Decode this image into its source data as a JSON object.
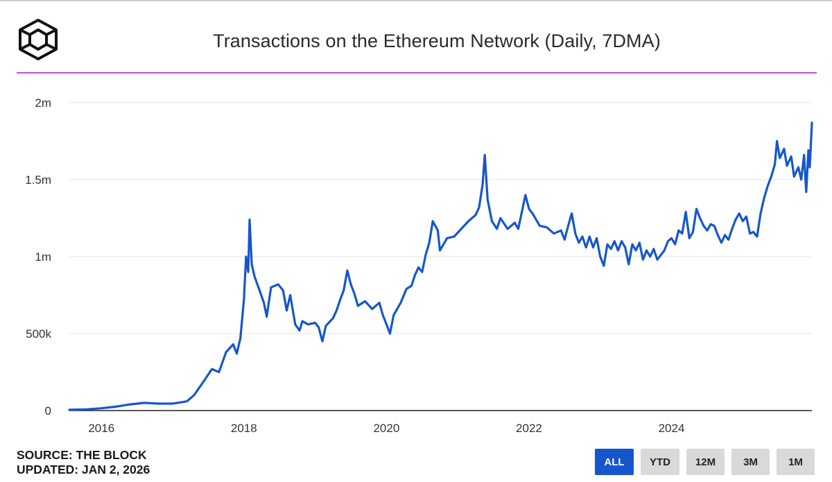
{
  "header": {
    "title": "Transactions on the Ethereum Network (Daily, 7DMA)",
    "logo_name": "the-block-cube-logo"
  },
  "colors": {
    "line": "#1656cc",
    "title_rule": "#b84be6",
    "grid": "#e6e6e6",
    "axis": "#222222",
    "active_button": "#1656cc",
    "inactive_button": "#d9d9d9"
  },
  "chart_data": {
    "type": "line",
    "title": "Transactions on the Ethereum Network (Daily, 7DMA)",
    "xlabel": "",
    "ylabel": "",
    "xlim": [
      2015.55,
      2025.97
    ],
    "ylim": [
      0,
      2000000
    ],
    "y_ticks": [
      0,
      500000,
      1000000,
      1500000,
      2000000
    ],
    "y_tick_labels": [
      "0",
      "500k",
      "1m",
      "1.5m",
      "2m"
    ],
    "x_ticks": [
      2016,
      2018,
      2020,
      2022,
      2024
    ],
    "x_tick_labels": [
      "2016",
      "2018",
      "2020",
      "2022",
      "2024"
    ],
    "grid": "horizontal",
    "series": [
      {
        "name": "Transactions (7DMA)",
        "points": [
          [
            2015.55,
            5000
          ],
          [
            2015.8,
            8000
          ],
          [
            2016.0,
            15000
          ],
          [
            2016.2,
            25000
          ],
          [
            2016.4,
            40000
          ],
          [
            2016.6,
            50000
          ],
          [
            2016.8,
            45000
          ],
          [
            2017.0,
            45000
          ],
          [
            2017.2,
            60000
          ],
          [
            2017.3,
            100000
          ],
          [
            2017.45,
            200000
          ],
          [
            2017.55,
            270000
          ],
          [
            2017.65,
            250000
          ],
          [
            2017.75,
            380000
          ],
          [
            2017.85,
            430000
          ],
          [
            2017.9,
            370000
          ],
          [
            2017.95,
            470000
          ],
          [
            2018.0,
            720000
          ],
          [
            2018.03,
            1000000
          ],
          [
            2018.06,
            900000
          ],
          [
            2018.08,
            1240000
          ],
          [
            2018.11,
            950000
          ],
          [
            2018.15,
            870000
          ],
          [
            2018.22,
            780000
          ],
          [
            2018.28,
            700000
          ],
          [
            2018.32,
            610000
          ],
          [
            2018.38,
            800000
          ],
          [
            2018.48,
            820000
          ],
          [
            2018.55,
            780000
          ],
          [
            2018.6,
            650000
          ],
          [
            2018.65,
            750000
          ],
          [
            2018.72,
            560000
          ],
          [
            2018.78,
            520000
          ],
          [
            2018.82,
            580000
          ],
          [
            2018.9,
            560000
          ],
          [
            2019.0,
            570000
          ],
          [
            2019.05,
            540000
          ],
          [
            2019.1,
            450000
          ],
          [
            2019.15,
            550000
          ],
          [
            2019.25,
            600000
          ],
          [
            2019.3,
            650000
          ],
          [
            2019.35,
            720000
          ],
          [
            2019.4,
            780000
          ],
          [
            2019.45,
            910000
          ],
          [
            2019.5,
            820000
          ],
          [
            2019.55,
            760000
          ],
          [
            2019.6,
            680000
          ],
          [
            2019.7,
            710000
          ],
          [
            2019.8,
            660000
          ],
          [
            2019.9,
            700000
          ],
          [
            2019.95,
            620000
          ],
          [
            2020.0,
            560000
          ],
          [
            2020.05,
            500000
          ],
          [
            2020.1,
            620000
          ],
          [
            2020.2,
            700000
          ],
          [
            2020.28,
            790000
          ],
          [
            2020.35,
            810000
          ],
          [
            2020.4,
            880000
          ],
          [
            2020.45,
            930000
          ],
          [
            2020.5,
            900000
          ],
          [
            2020.55,
            1010000
          ],
          [
            2020.6,
            1090000
          ],
          [
            2020.65,
            1230000
          ],
          [
            2020.72,
            1170000
          ],
          [
            2020.75,
            1040000
          ],
          [
            2020.85,
            1120000
          ],
          [
            2020.95,
            1130000
          ],
          [
            2021.05,
            1180000
          ],
          [
            2021.15,
            1230000
          ],
          [
            2021.25,
            1270000
          ],
          [
            2021.3,
            1320000
          ],
          [
            2021.35,
            1470000
          ],
          [
            2021.38,
            1660000
          ],
          [
            2021.42,
            1370000
          ],
          [
            2021.48,
            1230000
          ],
          [
            2021.55,
            1180000
          ],
          [
            2021.6,
            1250000
          ],
          [
            2021.7,
            1180000
          ],
          [
            2021.8,
            1220000
          ],
          [
            2021.85,
            1180000
          ],
          [
            2021.9,
            1290000
          ],
          [
            2021.95,
            1400000
          ],
          [
            2022.0,
            1310000
          ],
          [
            2022.05,
            1280000
          ],
          [
            2022.15,
            1200000
          ],
          [
            2022.25,
            1190000
          ],
          [
            2022.35,
            1150000
          ],
          [
            2022.45,
            1170000
          ],
          [
            2022.5,
            1110000
          ],
          [
            2022.55,
            1200000
          ],
          [
            2022.6,
            1280000
          ],
          [
            2022.65,
            1150000
          ],
          [
            2022.7,
            1090000
          ],
          [
            2022.75,
            1130000
          ],
          [
            2022.8,
            1060000
          ],
          [
            2022.85,
            1130000
          ],
          [
            2022.9,
            1060000
          ],
          [
            2022.95,
            1120000
          ],
          [
            2023.0,
            1000000
          ],
          [
            2023.05,
            940000
          ],
          [
            2023.1,
            1080000
          ],
          [
            2023.15,
            1050000
          ],
          [
            2023.2,
            1100000
          ],
          [
            2023.25,
            1040000
          ],
          [
            2023.3,
            1100000
          ],
          [
            2023.35,
            1060000
          ],
          [
            2023.4,
            950000
          ],
          [
            2023.45,
            1080000
          ],
          [
            2023.5,
            1040000
          ],
          [
            2023.55,
            1090000
          ],
          [
            2023.6,
            980000
          ],
          [
            2023.65,
            1040000
          ],
          [
            2023.7,
            1000000
          ],
          [
            2023.75,
            1050000
          ],
          [
            2023.8,
            980000
          ],
          [
            2023.85,
            1010000
          ],
          [
            2023.9,
            1040000
          ],
          [
            2023.95,
            1100000
          ],
          [
            2024.0,
            1120000
          ],
          [
            2024.05,
            1080000
          ],
          [
            2024.1,
            1170000
          ],
          [
            2024.15,
            1150000
          ],
          [
            2024.2,
            1290000
          ],
          [
            2024.25,
            1120000
          ],
          [
            2024.3,
            1160000
          ],
          [
            2024.35,
            1310000
          ],
          [
            2024.4,
            1250000
          ],
          [
            2024.45,
            1200000
          ],
          [
            2024.5,
            1170000
          ],
          [
            2024.55,
            1210000
          ],
          [
            2024.6,
            1200000
          ],
          [
            2024.65,
            1140000
          ],
          [
            2024.7,
            1090000
          ],
          [
            2024.75,
            1140000
          ],
          [
            2024.8,
            1110000
          ],
          [
            2024.85,
            1180000
          ],
          [
            2024.9,
            1240000
          ],
          [
            2024.95,
            1280000
          ],
          [
            2025.0,
            1230000
          ],
          [
            2025.05,
            1260000
          ],
          [
            2025.1,
            1150000
          ],
          [
            2025.15,
            1160000
          ],
          [
            2025.2,
            1130000
          ],
          [
            2025.25,
            1280000
          ],
          [
            2025.3,
            1380000
          ],
          [
            2025.35,
            1460000
          ],
          [
            2025.4,
            1520000
          ],
          [
            2025.45,
            1600000
          ],
          [
            2025.48,
            1750000
          ],
          [
            2025.52,
            1640000
          ],
          [
            2025.58,
            1700000
          ],
          [
            2025.62,
            1590000
          ],
          [
            2025.68,
            1650000
          ],
          [
            2025.72,
            1520000
          ],
          [
            2025.78,
            1580000
          ],
          [
            2025.82,
            1500000
          ],
          [
            2025.86,
            1660000
          ],
          [
            2025.89,
            1420000
          ],
          [
            2025.92,
            1690000
          ],
          [
            2025.94,
            1580000
          ],
          [
            2025.97,
            1870000
          ]
        ]
      }
    ]
  },
  "footer": {
    "source": "SOURCE: THE BLOCK",
    "updated": "UPDATED: JAN 2, 2026"
  },
  "range_buttons": {
    "all": "ALL",
    "ytd": "YTD",
    "m12": "12M",
    "m3": "3M",
    "m1": "1M",
    "selected": "ALL"
  }
}
